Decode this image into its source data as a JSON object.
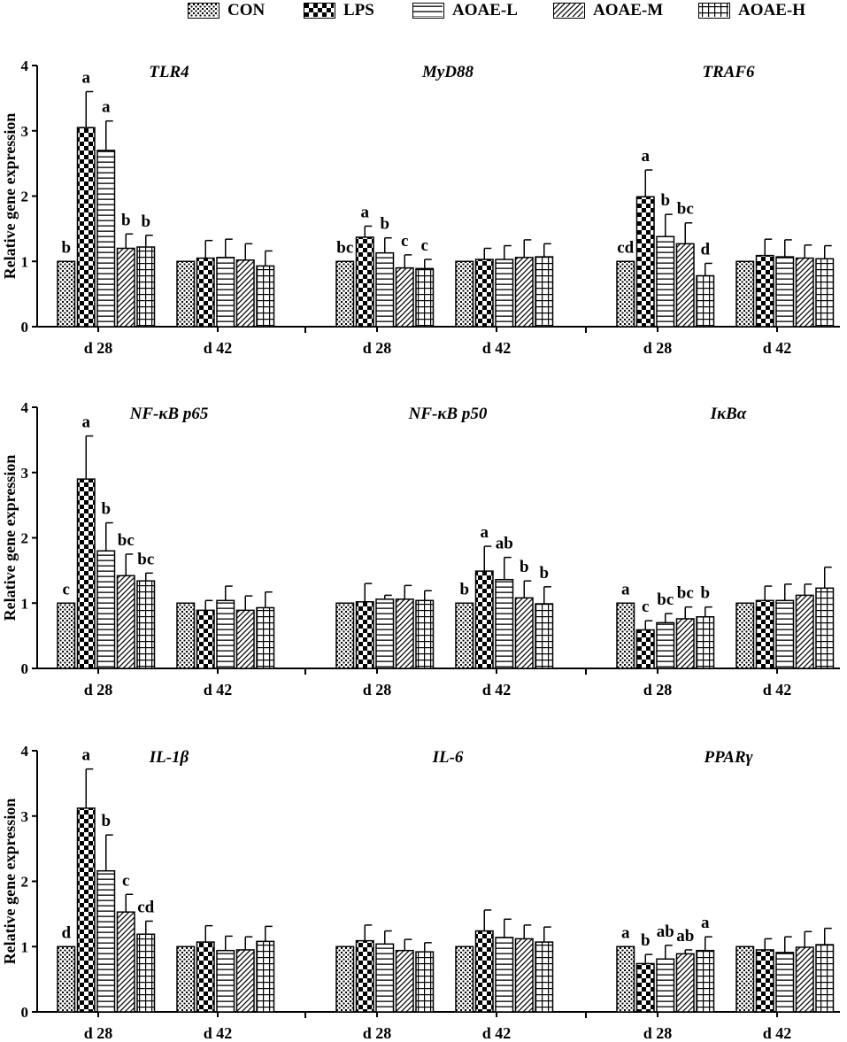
{
  "legend": {
    "items": [
      {
        "label": "CON",
        "pattern": "dots"
      },
      {
        "label": "LPS",
        "pattern": "checker"
      },
      {
        "label": "AOAE-L",
        "pattern": "hlines"
      },
      {
        "label": "AOAE-M",
        "pattern": "diag"
      },
      {
        "label": "AOAE-H",
        "pattern": "grid"
      }
    ]
  },
  "colors": {
    "ink": "#000000",
    "fill": "#ffffff"
  },
  "chart_data": [
    {
      "type": "bar",
      "ylabel": "Relative gene expression",
      "ylim": [
        0,
        4
      ],
      "yticks": [
        "0",
        "1",
        "2",
        "3",
        "4"
      ],
      "day_labels": [
        "d 28",
        "d 42"
      ],
      "series_names": [
        "CON",
        "LPS",
        "AOAE-L",
        "AOAE-M",
        "AOAE-H"
      ],
      "genes": [
        {
          "name": "TLR4",
          "d28": {
            "values": [
              1.0,
              3.05,
              2.7,
              1.2,
              1.22
            ],
            "errors": [
              0,
              0.55,
              0.45,
              0.22,
              0.18
            ],
            "letters": [
              "b",
              "a",
              "a",
              "b",
              "b"
            ]
          },
          "d42": {
            "values": [
              1.0,
              1.05,
              1.06,
              1.02,
              0.93
            ],
            "errors": [
              0,
              0.27,
              0.28,
              0.25,
              0.23
            ]
          }
        },
        {
          "name": "MyD88",
          "d28": {
            "values": [
              1.0,
              1.37,
              1.13,
              0.9,
              0.89
            ],
            "errors": [
              0,
              0.17,
              0.23,
              0.2,
              0.14
            ],
            "letters": [
              "bc",
              "a",
              "b",
              "c",
              "c"
            ]
          },
          "d42": {
            "values": [
              1.0,
              1.03,
              1.03,
              1.06,
              1.07
            ],
            "errors": [
              0,
              0.17,
              0.21,
              0.27,
              0.2
            ]
          }
        },
        {
          "name": "TRAF6",
          "d28": {
            "values": [
              1.0,
              1.99,
              1.38,
              1.27,
              0.78
            ],
            "errors": [
              0,
              0.41,
              0.34,
              0.32,
              0.19
            ],
            "letters": [
              "cd",
              "a",
              "b",
              "bc",
              "d"
            ]
          },
          "d42": {
            "values": [
              1.0,
              1.09,
              1.07,
              1.05,
              1.04
            ],
            "errors": [
              0,
              0.25,
              0.26,
              0.2,
              0.2
            ]
          }
        }
      ]
    },
    {
      "type": "bar",
      "ylabel": "Relative gene expression",
      "ylim": [
        0,
        4
      ],
      "yticks": [
        "0",
        "1",
        "2",
        "3",
        "4"
      ],
      "day_labels": [
        "d 28",
        "d 42"
      ],
      "series_names": [
        "CON",
        "LPS",
        "AOAE-L",
        "AOAE-M",
        "AOAE-H"
      ],
      "genes": [
        {
          "name": "NF-κB p65",
          "d28": {
            "values": [
              1.0,
              2.9,
              1.8,
              1.42,
              1.34
            ],
            "errors": [
              0,
              0.66,
              0.43,
              0.33,
              0.12
            ],
            "letters": [
              "c",
              "a",
              "b",
              "bc",
              "bc"
            ]
          },
          "d42": {
            "values": [
              1.0,
              0.89,
              1.04,
              0.89,
              0.93
            ],
            "errors": [
              0,
              0.15,
              0.22,
              0.22,
              0.24
            ]
          }
        },
        {
          "name": "NF-κB p50",
          "d28": {
            "values": [
              1.0,
              1.02,
              1.06,
              1.06,
              1.04
            ],
            "errors": [
              0,
              0.28,
              0.06,
              0.21,
              0.15
            ]
          },
          "d42": {
            "values": [
              1.0,
              1.49,
              1.36,
              1.08,
              0.99
            ],
            "errors": [
              0,
              0.38,
              0.34,
              0.26,
              0.26
            ],
            "letters": [
              "b",
              "a",
              "ab",
              "b",
              "b"
            ]
          }
        },
        {
          "name": "IκBα",
          "d28": {
            "values": [
              1.0,
              0.59,
              0.7,
              0.76,
              0.79
            ],
            "errors": [
              0,
              0.14,
              0.14,
              0.18,
              0.15
            ],
            "letters": [
              "a",
              "c",
              "bc",
              "bc",
              "b"
            ]
          },
          "d42": {
            "values": [
              1.0,
              1.04,
              1.04,
              1.12,
              1.23
            ],
            "errors": [
              0,
              0.22,
              0.25,
              0.17,
              0.32
            ]
          }
        }
      ]
    },
    {
      "type": "bar",
      "ylabel": "Relative gene expression",
      "ylim": [
        0,
        4
      ],
      "yticks": [
        "0",
        "1",
        "2",
        "3",
        "4"
      ],
      "day_labels": [
        "d 28",
        "d 42"
      ],
      "series_names": [
        "CON",
        "LPS",
        "AOAE-L",
        "AOAE-M",
        "AOAE-H"
      ],
      "genes": [
        {
          "name": "IL-1β",
          "d28": {
            "values": [
              1.0,
              3.12,
              2.16,
              1.53,
              1.19
            ],
            "errors": [
              0,
              0.6,
              0.55,
              0.27,
              0.2
            ],
            "letters": [
              "d",
              "a",
              "b",
              "c",
              "cd"
            ]
          },
          "d42": {
            "values": [
              1.0,
              1.07,
              0.94,
              0.95,
              1.08
            ],
            "errors": [
              0,
              0.25,
              0.22,
              0.2,
              0.23
            ]
          }
        },
        {
          "name": "IL-6",
          "d28": {
            "values": [
              1.0,
              1.09,
              1.04,
              0.94,
              0.92
            ],
            "errors": [
              0,
              0.24,
              0.2,
              0.17,
              0.14
            ]
          },
          "d42": {
            "values": [
              1.0,
              1.24,
              1.14,
              1.12,
              1.07
            ],
            "errors": [
              0,
              0.32,
              0.28,
              0.21,
              0.23
            ]
          }
        },
        {
          "name": "PPARγ",
          "d28": {
            "values": [
              1.0,
              0.74,
              0.81,
              0.89,
              0.94
            ],
            "errors": [
              0,
              0.14,
              0.21,
              0.06,
              0.21
            ],
            "letters": [
              "a",
              "b",
              "ab",
              "ab",
              "a"
            ]
          },
          "d42": {
            "values": [
              1.0,
              0.95,
              0.91,
              0.99,
              1.03
            ],
            "errors": [
              0,
              0.17,
              0.24,
              0.24,
              0.25
            ]
          }
        }
      ]
    }
  ]
}
